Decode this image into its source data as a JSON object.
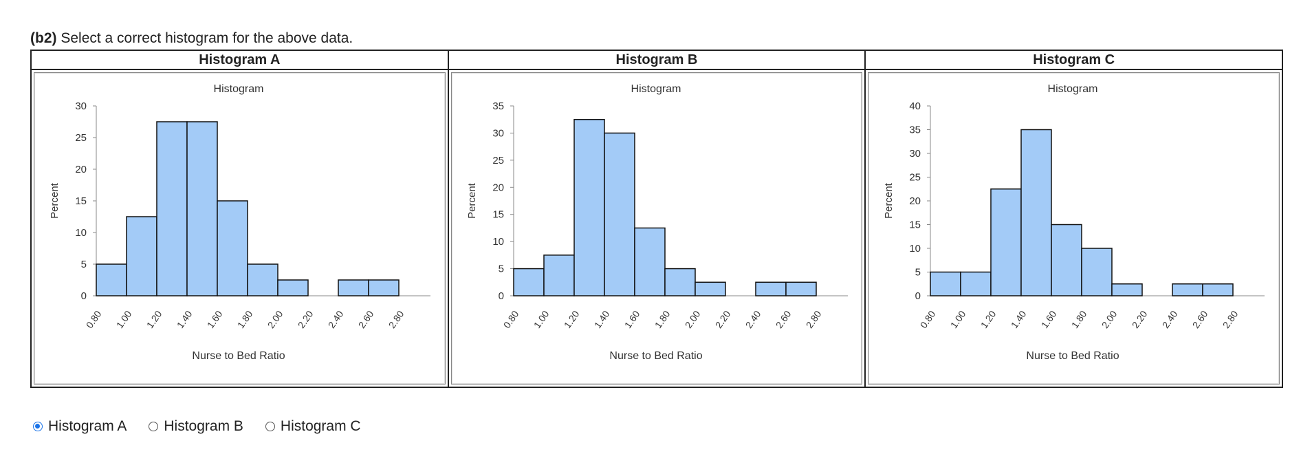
{
  "question": {
    "label": "(b2)",
    "text": "Select a correct histogram for the above data."
  },
  "columns": [
    "Histogram A",
    "Histogram B",
    "Histogram C"
  ],
  "options": [
    {
      "label": "Histogram A",
      "checked": true
    },
    {
      "label": "Histogram B",
      "checked": false
    },
    {
      "label": "Histogram C",
      "checked": false
    }
  ],
  "colors": {
    "bar_fill": "#a3cbf7",
    "bar_stroke": "#111111",
    "accent": "#1a73e8"
  },
  "chart_data": [
    {
      "type": "bar",
      "title": "Histogram",
      "xlabel": "Nurse to Bed Ratio",
      "ylabel": "Percent",
      "x_tick_labels": [
        "0.80",
        "1.00",
        "1.20",
        "1.40",
        "1.60",
        "1.80",
        "2.00",
        "2.20",
        "2.40",
        "2.60",
        "2.80"
      ],
      "bin_edges": [
        0.8,
        1.0,
        1.2,
        1.4,
        1.6,
        1.8,
        2.0,
        2.2,
        2.4,
        2.6,
        2.8
      ],
      "values": [
        5,
        12.5,
        27.5,
        27.5,
        15,
        5,
        2.5,
        0,
        2.5,
        2.5
      ],
      "ylim": [
        0,
        30
      ],
      "y_ticks": [
        0,
        5,
        10,
        15,
        20,
        25,
        30
      ]
    },
    {
      "type": "bar",
      "title": "Histogram",
      "xlabel": "Nurse to Bed Ratio",
      "ylabel": "Percent",
      "x_tick_labels": [
        "0.80",
        "1.00",
        "1.20",
        "1.40",
        "1.60",
        "1.80",
        "2.00",
        "2.20",
        "2.40",
        "2.60",
        "2.80"
      ],
      "bin_edges": [
        0.8,
        1.0,
        1.2,
        1.4,
        1.6,
        1.8,
        2.0,
        2.2,
        2.4,
        2.6,
        2.8
      ],
      "values": [
        5,
        7.5,
        32.5,
        30,
        12.5,
        5,
        2.5,
        0,
        2.5,
        2.5
      ],
      "ylim": [
        0,
        35
      ],
      "y_ticks": [
        0,
        5,
        10,
        15,
        20,
        25,
        30,
        35
      ]
    },
    {
      "type": "bar",
      "title": "Histogram",
      "xlabel": "Nurse to Bed Ratio",
      "ylabel": "Percent",
      "x_tick_labels": [
        "0.80",
        "1.00",
        "1.20",
        "1.40",
        "1.60",
        "1.80",
        "2.00",
        "2.20",
        "2.40",
        "2.60",
        "2.80"
      ],
      "bin_edges": [
        0.8,
        1.0,
        1.2,
        1.4,
        1.6,
        1.8,
        2.0,
        2.2,
        2.4,
        2.6,
        2.8
      ],
      "values": [
        5,
        5,
        22.5,
        35,
        15,
        10,
        2.5,
        0,
        2.5,
        2.5
      ],
      "ylim": [
        0,
        40
      ],
      "y_ticks": [
        0,
        5,
        10,
        15,
        20,
        25,
        30,
        35,
        40
      ]
    }
  ]
}
